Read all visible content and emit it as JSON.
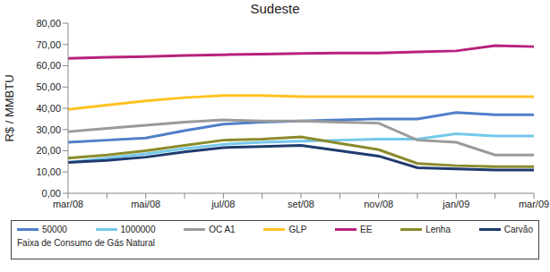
{
  "chart_data": {
    "type": "line",
    "title": "Sudeste",
    "y_label": "R$ / MMBTU",
    "annotations": [
      "Faixa de Consumo de Gás Natural"
    ],
    "categories": [
      "mar/08",
      null,
      "mai/08",
      null,
      "jul/08",
      null,
      "set/08",
      null,
      "nov/08",
      null,
      "jan/09",
      null,
      "mar/09"
    ],
    "series": [
      {
        "name": "50000",
        "color": "#4f7fc9",
        "values": [
          24,
          25,
          26,
          29.5,
          32.5,
          33.5,
          34,
          34.5,
          35,
          35,
          38,
          37,
          37
        ]
      },
      {
        "name": "1000000",
        "color": "#74c8ea",
        "values": [
          14.5,
          16.5,
          18.5,
          21,
          23,
          24,
          24.5,
          25,
          25.5,
          25.5,
          28,
          27,
          27
        ]
      },
      {
        "name": "OC A1",
        "color": "#9a9a9a",
        "values": [
          29,
          30.5,
          32,
          33.5,
          34.5,
          34,
          34,
          33.5,
          33,
          25,
          24,
          18,
          18
        ]
      },
      {
        "name": "GLP",
        "color": "#ffc222",
        "values": [
          39.5,
          41.5,
          43.5,
          45,
          46,
          46,
          45.5,
          45.5,
          45.5,
          45.5,
          45.5,
          45.5,
          45.5
        ]
      },
      {
        "name": "EE",
        "color": "#b8227c",
        "values": [
          63.5,
          64,
          64.3,
          64.8,
          65.2,
          65.5,
          65.8,
          66,
          66,
          66.5,
          67,
          69.5,
          69
        ]
      },
      {
        "name": "Lenha",
        "color": "#8a8a2c",
        "values": [
          16.5,
          18,
          20,
          22.5,
          25,
          25.5,
          26.5,
          23.5,
          20.5,
          14,
          13,
          12.5,
          12.5
        ]
      },
      {
        "name": "Carvão",
        "color": "#1f3a6e",
        "values": [
          14.5,
          15.5,
          17,
          19.5,
          21.5,
          22,
          22.5,
          20,
          17.5,
          12,
          11.5,
          11,
          11
        ]
      }
    ],
    "ylim": [
      0,
      80
    ],
    "yticks": [
      {
        "value": 0,
        "label": "0,00"
      },
      {
        "value": 10,
        "label": "10,00"
      },
      {
        "value": 20,
        "label": "20,00"
      },
      {
        "value": 30,
        "label": "30,00"
      },
      {
        "value": 40,
        "label": "40,00"
      },
      {
        "value": 50,
        "label": "50,00"
      },
      {
        "value": 60,
        "label": "60,00"
      },
      {
        "value": 70,
        "label": "70,00"
      },
      {
        "value": 80,
        "label": "80,00"
      }
    ],
    "grid": false,
    "legend": "bottom"
  }
}
